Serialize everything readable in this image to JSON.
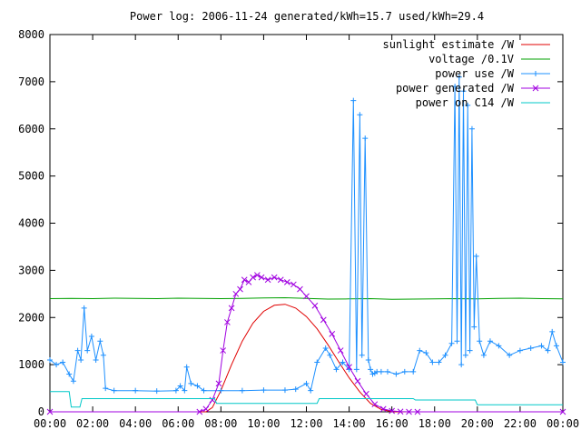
{
  "chart_data": {
    "type": "line",
    "title": "Power log: 2006-11-24 generated/kWh=15.7 used/kWh=29.4",
    "xlabel": "",
    "ylabel": "",
    "xlim": [
      0,
      24
    ],
    "ylim": [
      0,
      8000
    ],
    "x_ticks": [
      {
        "value": 0,
        "label": "00:00"
      },
      {
        "value": 2,
        "label": "02:00"
      },
      {
        "value": 4,
        "label": "04:00"
      },
      {
        "value": 6,
        "label": "06:00"
      },
      {
        "value": 8,
        "label": "08:00"
      },
      {
        "value": 10,
        "label": "10:00"
      },
      {
        "value": 12,
        "label": "12:00"
      },
      {
        "value": 14,
        "label": "14:00"
      },
      {
        "value": 16,
        "label": "16:00"
      },
      {
        "value": 18,
        "label": "18:00"
      },
      {
        "value": 20,
        "label": "20:00"
      },
      {
        "value": 22,
        "label": "22:00"
      },
      {
        "value": 24,
        "label": "00:00"
      }
    ],
    "y_ticks": [
      0,
      1000,
      2000,
      3000,
      4000,
      5000,
      6000,
      7000,
      8000
    ],
    "grid": false,
    "legend_position": "top-right",
    "series": [
      {
        "name": "sunlight estimate /W",
        "color": "#e00000",
        "marker": "none",
        "x": [
          0,
          7.3,
          7.6,
          8.0,
          8.5,
          9.0,
          9.5,
          10.0,
          10.5,
          11.0,
          11.5,
          12.0,
          12.5,
          13.0,
          13.5,
          14.0,
          14.5,
          15.0,
          15.5,
          16.0,
          16.3,
          24
        ],
        "y": [
          0,
          0,
          90,
          450,
          1000,
          1500,
          1880,
          2130,
          2260,
          2280,
          2200,
          2020,
          1760,
          1430,
          1070,
          720,
          420,
          180,
          50,
          5,
          0,
          0
        ]
      },
      {
        "name": "voltage /0.1V",
        "color": "#00a000",
        "marker": "none",
        "x": [
          0,
          1,
          2,
          3,
          4,
          5,
          6,
          7,
          8,
          9,
          10,
          11,
          12,
          13,
          14,
          15,
          16,
          17,
          18,
          19,
          20,
          21,
          22,
          23,
          24
        ],
        "y": [
          2400,
          2405,
          2400,
          2410,
          2405,
          2400,
          2410,
          2405,
          2400,
          2405,
          2415,
          2420,
          2405,
          2390,
          2395,
          2400,
          2385,
          2390,
          2395,
          2400,
          2395,
          2405,
          2410,
          2400,
          2395
        ]
      },
      {
        "name": "power use /W",
        "color": "#1e90ff",
        "marker": "plus",
        "x": [
          0,
          0.3,
          0.6,
          0.9,
          1.1,
          1.3,
          1.45,
          1.6,
          1.75,
          1.95,
          2.15,
          2.35,
          2.5,
          2.6,
          3,
          4,
          5,
          5.9,
          6.1,
          6.3,
          6.4,
          6.6,
          6.9,
          7.2,
          8,
          9,
          10,
          11,
          11.5,
          12,
          12.2,
          12.5,
          12.9,
          13.1,
          13.4,
          13.7,
          14.0,
          14.2,
          14.35,
          14.5,
          14.6,
          14.75,
          14.9,
          15.0,
          15.1,
          15.2,
          15.3,
          15.5,
          15.8,
          16.2,
          16.6,
          17.0,
          17.3,
          17.6,
          17.9,
          18.2,
          18.5,
          18.8,
          18.95,
          19.05,
          19.15,
          19.25,
          19.35,
          19.45,
          19.55,
          19.65,
          19.75,
          19.85,
          19.95,
          20.1,
          20.3,
          20.6,
          21.0,
          21.5,
          22.0,
          22.5,
          23.0,
          23.3,
          23.5,
          23.7,
          24.0
        ],
        "y": [
          1100,
          1000,
          1050,
          800,
          650,
          1300,
          1100,
          2200,
          1300,
          1600,
          1100,
          1500,
          1200,
          500,
          450,
          450,
          440,
          450,
          550,
          450,
          950,
          600,
          550,
          450,
          450,
          450,
          460,
          460,
          480,
          600,
          450,
          1050,
          1350,
          1200,
          900,
          1050,
          900,
          6600,
          900,
          6300,
          1200,
          5800,
          1100,
          900,
          800,
          820,
          850,
          850,
          850,
          800,
          850,
          850,
          1300,
          1250,
          1050,
          1050,
          1200,
          1450,
          6900,
          1500,
          7100,
          1000,
          6800,
          1200,
          6500,
          1300,
          6000,
          1800,
          3300,
          1500,
          1200,
          1500,
          1400,
          1200,
          1300,
          1350,
          1400,
          1300,
          1700,
          1400,
          1050
        ]
      },
      {
        "name": "power generated /W",
        "color": "#a000e0",
        "marker": "cross",
        "x": [
          0,
          7.0,
          7.3,
          7.6,
          7.9,
          8.1,
          8.3,
          8.5,
          8.7,
          8.9,
          9.1,
          9.3,
          9.5,
          9.7,
          9.9,
          10.2,
          10.5,
          10.8,
          11.1,
          11.4,
          11.7,
          12.0,
          12.4,
          12.8,
          13.2,
          13.6,
          14.0,
          14.4,
          14.8,
          15.2,
          15.6,
          16.0,
          16.4,
          16.8,
          17.2,
          24
        ],
        "y": [
          0,
          0,
          60,
          250,
          600,
          1300,
          1900,
          2200,
          2500,
          2600,
          2800,
          2750,
          2850,
          2900,
          2850,
          2800,
          2850,
          2800,
          2750,
          2700,
          2600,
          2450,
          2250,
          1950,
          1650,
          1300,
          950,
          650,
          380,
          160,
          60,
          20,
          5,
          0,
          0,
          0
        ]
      },
      {
        "name": "power on C14 /W",
        "color": "#00c8c8",
        "marker": "none",
        "x": [
          0,
          0.9,
          1.0,
          1.4,
          1.5,
          7.7,
          7.8,
          12.5,
          12.6,
          17.0,
          17.1,
          19.9,
          20.0,
          24.0
        ],
        "y": [
          430,
          430,
          100,
          100,
          280,
          280,
          180,
          180,
          280,
          280,
          250,
          250,
          150,
          150
        ]
      }
    ]
  }
}
